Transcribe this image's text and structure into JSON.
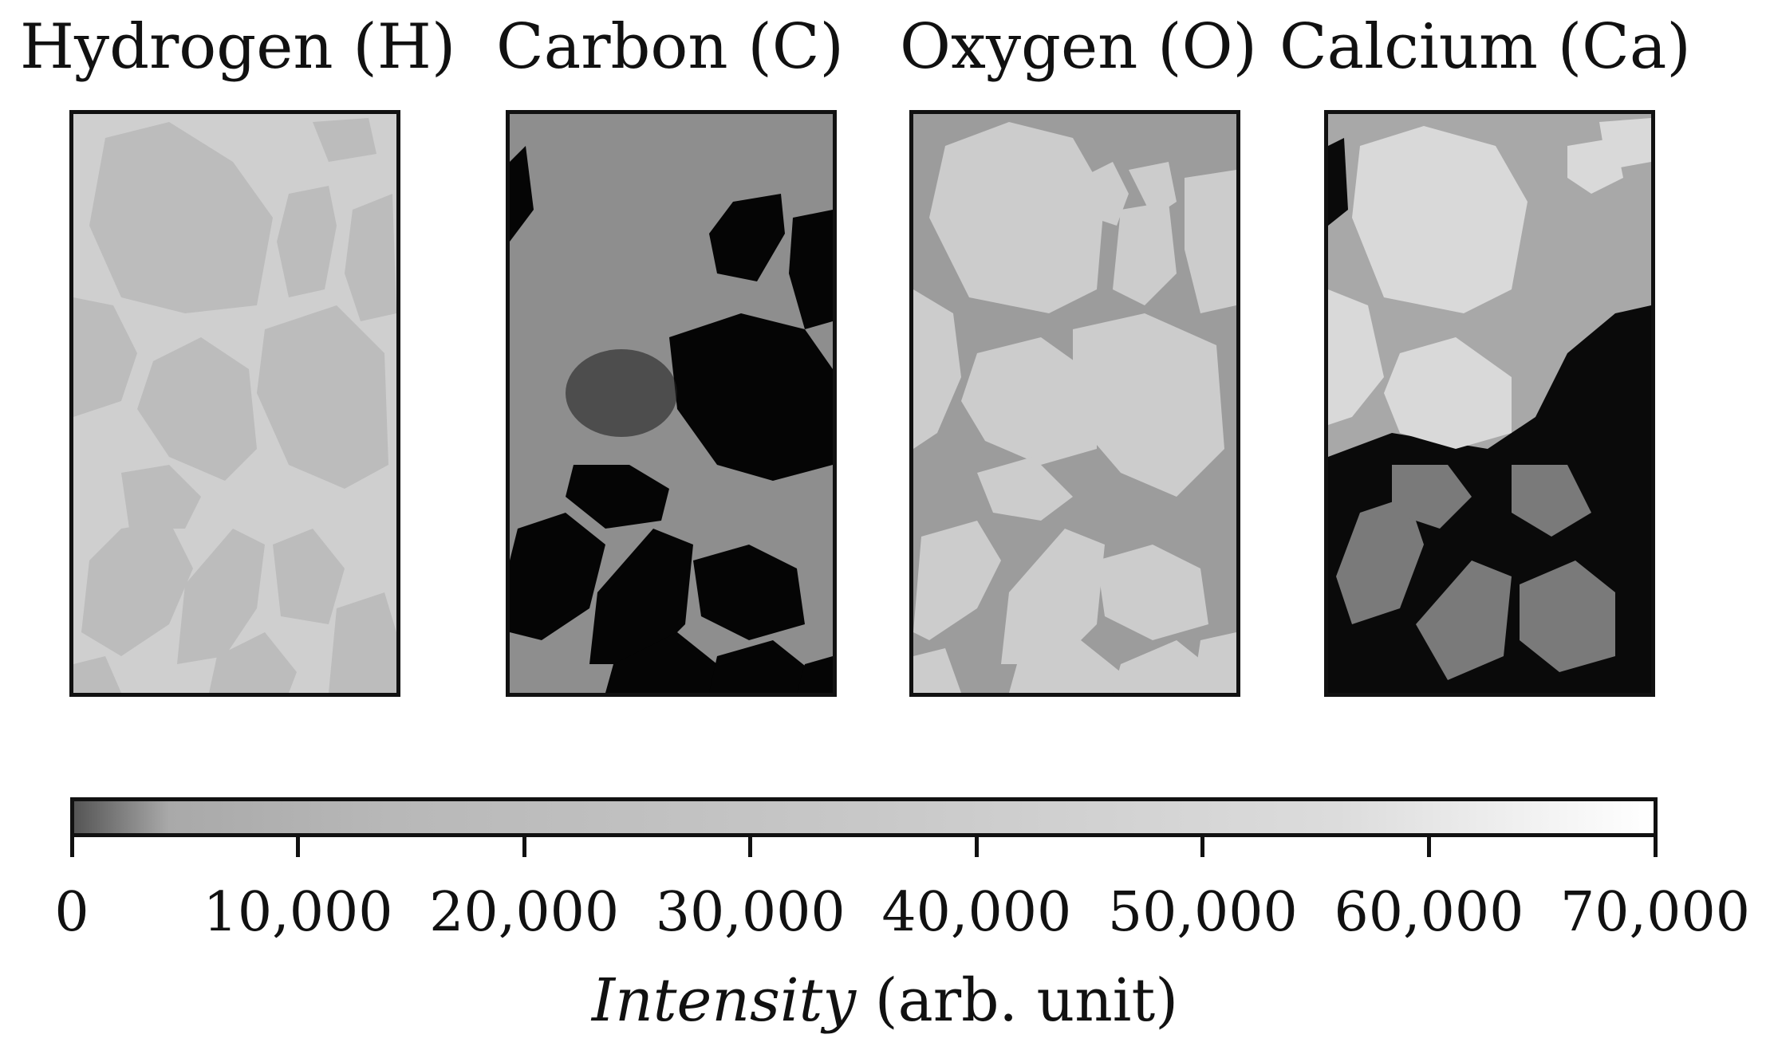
{
  "panels": [
    {
      "title": "Hydrogen (H)",
      "element": "hydrogen",
      "background": "#cfcfcf",
      "grain": "#bababa",
      "pore": "#d3d3d3"
    },
    {
      "title": "Carbon (C)",
      "element": "carbon",
      "background": "#8e8e8e",
      "grain": "#050505",
      "pore": "#8e8e8e"
    },
    {
      "title": "Oxygen (O)",
      "element": "oxygen",
      "background": "#9c9c9c",
      "grain": "#cccccc",
      "pore": "#9c9c9c"
    },
    {
      "title": "Calcium (Ca)",
      "element": "calcium",
      "background": "#a8a8a8",
      "grain": "#d9d9d9",
      "pore": "#0a0a0a"
    }
  ],
  "colorbar": {
    "min": 0,
    "max": 70000,
    "ticks": [
      "0",
      "10,000",
      "20,000",
      "30,000",
      "40,000",
      "50,000",
      "60,000",
      "70,000"
    ],
    "tick_values": [
      0,
      10000,
      20000,
      30000,
      40000,
      50000,
      60000,
      70000
    ],
    "colormap": "gray",
    "label_italic": "Intensity",
    "label_rest": "(arb. unit)"
  }
}
